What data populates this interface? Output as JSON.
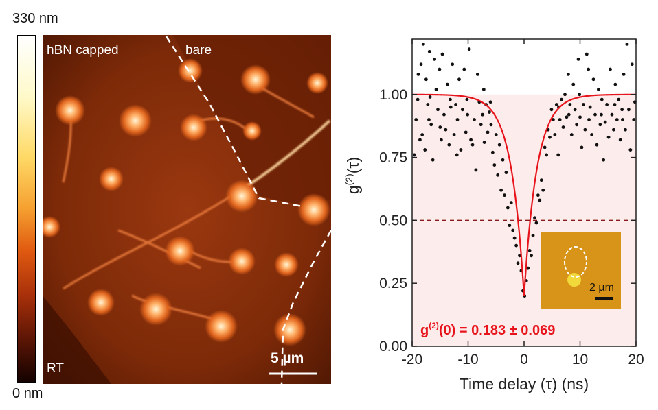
{
  "afm": {
    "colorbar_max": "330 nm",
    "colorbar_min": "0 nm",
    "region_capped": "hBN capped",
    "region_bare": "bare",
    "temp_label": "RT",
    "scalebar_label": "5 µm"
  },
  "chart_data": {
    "type": "scatter",
    "title": "",
    "xlabel": "Time delay (τ) (ns)",
    "ylabel_main": "g",
    "ylabel_sup": "(2)",
    "ylabel_tail": "(τ)",
    "xlim": [
      -20,
      20
    ],
    "ylim": [
      0.0,
      1.22
    ],
    "xticks": [
      -20,
      -10,
      0,
      10,
      20
    ],
    "xtick_labels": [
      "-20",
      "-10",
      "0",
      "10",
      "20"
    ],
    "yticks": [
      0.0,
      0.25,
      0.5,
      0.75,
      1.0
    ],
    "ytick_labels": [
      "0.00",
      "0.25",
      "0.50",
      "0.75",
      "1.00"
    ],
    "reference_line": 0.5,
    "fit": {
      "g0": 0.2,
      "tau": 2.3
    },
    "annotation_main": "g",
    "annotation_sup": "(2)",
    "annotation_tail": "(0) = 0.183 ± 0.069",
    "inset_scalebar": "2 µm",
    "colors": {
      "points": "#111111",
      "fit": "#e8141c",
      "annotation": "#e8141c",
      "ref_line": "#8b1a1a",
      "shade": "#fdecec"
    },
    "points": [
      [
        -19.6,
        0.76
      ],
      [
        -19.3,
        0.9
      ],
      [
        -18.9,
        1.08
      ],
      [
        -18.6,
        0.82
      ],
      [
        -18.4,
        1.12
      ],
      [
        -18.0,
        1.2
      ],
      [
        -17.7,
        0.78
      ],
      [
        -17.5,
        1.06
      ],
      [
        -17.2,
        0.96
      ],
      [
        -16.9,
        1.17
      ],
      [
        -16.6,
        0.88
      ],
      [
        -16.3,
        0.74
      ],
      [
        -16.0,
        1.14
      ],
      [
        -15.7,
        1.02
      ],
      [
        -15.4,
        0.94
      ],
      [
        -15.1,
        1.1
      ],
      [
        -14.8,
        0.82
      ],
      [
        -14.6,
        1.16
      ],
      [
        -14.3,
        0.92
      ],
      [
        -14.0,
        0.86
      ],
      [
        -13.7,
        1.04
      ],
      [
        -13.4,
        0.8
      ],
      [
        -13.1,
        0.95
      ],
      [
        -12.8,
        1.12
      ],
      [
        -12.5,
        0.84
      ],
      [
        -12.2,
        0.96
      ],
      [
        -11.9,
        0.9
      ],
      [
        -11.6,
        1.06
      ],
      [
        -11.3,
        0.78
      ],
      [
        -11.0,
        0.94
      ],
      [
        -10.7,
        1.1
      ],
      [
        -10.4,
        0.85
      ],
      [
        -10.1,
        0.92
      ],
      [
        -9.8,
        1.18
      ],
      [
        -9.5,
        0.82
      ],
      [
        -9.2,
        0.8
      ],
      [
        -8.9,
        0.9
      ],
      [
        -8.6,
        0.7
      ],
      [
        -8.3,
        1.08
      ],
      [
        -8.0,
        0.97
      ],
      [
        -7.7,
        0.88
      ],
      [
        -7.4,
        0.92
      ],
      [
        -7.1,
        0.81
      ],
      [
        -6.8,
        0.96
      ],
      [
        -6.5,
        0.85
      ],
      [
        -6.2,
        0.93
      ],
      [
        -5.9,
        0.88
      ],
      [
        -5.6,
        0.77
      ],
      [
        -5.3,
        0.72
      ],
      [
        -5.0,
        0.84
      ],
      [
        -4.7,
        0.68
      ],
      [
        -4.4,
        0.8
      ],
      [
        -4.1,
        0.62
      ],
      [
        -3.8,
        0.74
      ],
      [
        -3.5,
        0.6
      ],
      [
        -3.2,
        0.69
      ],
      [
        -2.9,
        0.55
      ],
      [
        -2.6,
        0.48
      ],
      [
        -2.3,
        0.57
      ],
      [
        -2.0,
        0.46
      ],
      [
        -1.7,
        0.43
      ],
      [
        -1.4,
        0.4
      ],
      [
        -1.1,
        0.33
      ],
      [
        -0.8,
        0.36
      ],
      [
        -0.5,
        0.3
      ],
      [
        -0.2,
        0.22
      ],
      [
        0.1,
        0.2
      ],
      [
        0.4,
        0.26
      ],
      [
        0.7,
        0.31
      ],
      [
        1.0,
        0.38
      ],
      [
        1.3,
        0.36
      ],
      [
        1.6,
        0.44
      ],
      [
        1.9,
        0.51
      ],
      [
        2.2,
        0.49
      ],
      [
        2.5,
        0.6
      ],
      [
        2.8,
        0.58
      ],
      [
        3.1,
        0.66
      ],
      [
        3.4,
        0.62
      ],
      [
        3.7,
        0.79
      ],
      [
        4.0,
        0.76
      ],
      [
        4.3,
        0.86
      ],
      [
        4.6,
        0.83
      ],
      [
        4.9,
        0.94
      ],
      [
        5.2,
        0.9
      ],
      [
        5.5,
        0.84
      ],
      [
        5.8,
        0.96
      ],
      [
        6.1,
        0.76
      ],
      [
        6.4,
        0.9
      ],
      [
        6.7,
        0.98
      ],
      [
        7.0,
        0.87
      ],
      [
        7.3,
        1.0
      ],
      [
        7.6,
        0.91
      ],
      [
        7.9,
        1.08
      ],
      [
        8.2,
        0.96
      ],
      [
        8.5,
        0.84
      ],
      [
        8.8,
        1.04
      ],
      [
        9.1,
        0.94
      ],
      [
        9.4,
        0.88
      ],
      [
        9.7,
        1.14
      ],
      [
        10.0,
        0.91
      ],
      [
        10.3,
        0.79
      ],
      [
        10.6,
        0.96
      ],
      [
        10.9,
        0.86
      ],
      [
        11.2,
        1.16
      ],
      [
        11.5,
        1.1
      ],
      [
        11.8,
        0.95
      ],
      [
        12.1,
        0.84
      ],
      [
        12.4,
        1.06
      ],
      [
        12.7,
        0.92
      ],
      [
        13.0,
        0.8
      ],
      [
        13.3,
        1.02
      ],
      [
        13.6,
        0.88
      ],
      [
        13.9,
        0.98
      ],
      [
        14.2,
        0.74
      ],
      [
        14.5,
        0.89
      ],
      [
        14.8,
        0.96
      ],
      [
        15.1,
        0.83
      ],
      [
        15.4,
        1.1
      ],
      [
        15.7,
        0.92
      ],
      [
        16.0,
        0.86
      ],
      [
        16.3,
        1.04
      ],
      [
        16.6,
        0.9
      ],
      [
        16.9,
        0.98
      ],
      [
        17.2,
        0.82
      ],
      [
        17.5,
        0.94
      ],
      [
        17.8,
        1.08
      ],
      [
        18.1,
        0.86
      ],
      [
        18.4,
        1.2
      ],
      [
        18.7,
        0.94
      ],
      [
        19.0,
        0.78
      ],
      [
        19.3,
        1.12
      ],
      [
        19.6,
        0.9
      ],
      [
        -18.2,
        0.84
      ],
      [
        -16.8,
        0.99
      ],
      [
        -15.0,
        0.87
      ],
      [
        -13.2,
        0.98
      ],
      [
        -12.0,
        0.76
      ],
      [
        -10.2,
        0.98
      ],
      [
        -7.2,
        1.02
      ],
      [
        -6.0,
        0.97
      ],
      [
        6.2,
        0.95
      ],
      [
        8.0,
        0.92
      ],
      [
        9.9,
        1.0
      ],
      [
        11.6,
        0.9
      ],
      [
        13.8,
        0.92
      ],
      [
        16.2,
        0.96
      ],
      [
        17.6,
        0.9
      ],
      [
        19.8,
        0.97
      ],
      [
        -19.0,
        0.98
      ],
      [
        -17.0,
        0.9
      ]
    ]
  }
}
